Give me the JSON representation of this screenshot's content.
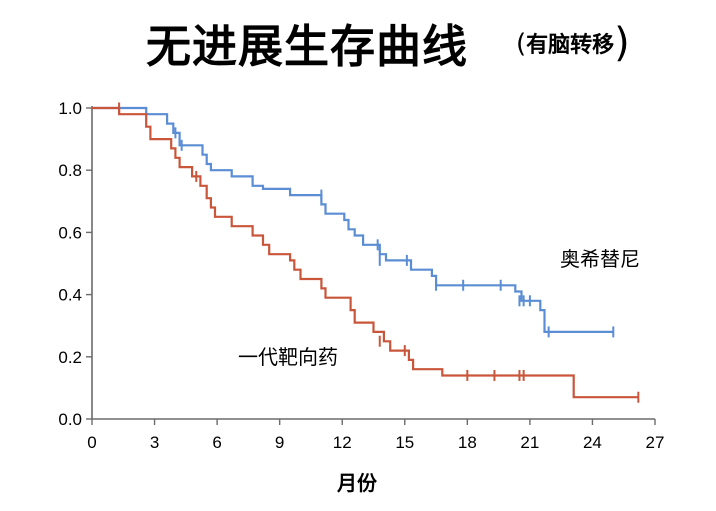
{
  "title": {
    "main": "无进展生存曲线",
    "sub": "有脑转移",
    "open_paren": "(",
    "close_paren": ")"
  },
  "colors": {
    "series_1": "#5b8dd4",
    "series_2": "#c9563a",
    "axis": "#6b6b6b"
  },
  "chart_data": {
    "type": "line",
    "title": "无进展生存曲线 (有脑转移)",
    "xlabel": "月份",
    "ylabel": "",
    "xlim": [
      0,
      27
    ],
    "ylim": [
      0,
      1.0
    ],
    "xticks": [
      0,
      3,
      6,
      9,
      12,
      15,
      18,
      21,
      24,
      27
    ],
    "yticks": [
      "0.0",
      "0.2",
      "0.4",
      "0.6",
      "0.8",
      "1.0"
    ],
    "ytick_values": [
      0,
      0.2,
      0.4,
      0.6,
      0.8,
      1.0
    ],
    "grid": false,
    "legend": "inline labels",
    "series": [
      {
        "name": "奥希替尼",
        "color": "#5b8dd4",
        "steps": [
          [
            0,
            1.0
          ],
          [
            2.6,
            1.0
          ],
          [
            2.6,
            0.98
          ],
          [
            3.6,
            0.98
          ],
          [
            3.6,
            0.95
          ],
          [
            3.9,
            0.95
          ],
          [
            3.9,
            0.92
          ],
          [
            4.2,
            0.92
          ],
          [
            4.2,
            0.88
          ],
          [
            5.3,
            0.88
          ],
          [
            5.3,
            0.85
          ],
          [
            5.5,
            0.85
          ],
          [
            5.5,
            0.82
          ],
          [
            5.7,
            0.82
          ],
          [
            5.7,
            0.8
          ],
          [
            6.7,
            0.8
          ],
          [
            6.7,
            0.78
          ],
          [
            7.7,
            0.78
          ],
          [
            7.7,
            0.75
          ],
          [
            8.2,
            0.75
          ],
          [
            8.2,
            0.74
          ],
          [
            9.5,
            0.74
          ],
          [
            9.5,
            0.72
          ],
          [
            11.0,
            0.72
          ],
          [
            11.0,
            0.69
          ],
          [
            11.2,
            0.69
          ],
          [
            11.2,
            0.66
          ],
          [
            12.1,
            0.66
          ],
          [
            12.1,
            0.64
          ],
          [
            12.3,
            0.64
          ],
          [
            12.3,
            0.61
          ],
          [
            12.6,
            0.61
          ],
          [
            12.6,
            0.59
          ],
          [
            13.0,
            0.59
          ],
          [
            13.0,
            0.56
          ],
          [
            13.8,
            0.56
          ],
          [
            13.8,
            0.53
          ],
          [
            14.1,
            0.53
          ],
          [
            14.1,
            0.51
          ],
          [
            15.3,
            0.51
          ],
          [
            15.3,
            0.48
          ],
          [
            16.3,
            0.48
          ],
          [
            16.3,
            0.46
          ],
          [
            16.5,
            0.46
          ],
          [
            16.5,
            0.43
          ],
          [
            20.3,
            0.43
          ],
          [
            20.3,
            0.41
          ],
          [
            20.6,
            0.41
          ],
          [
            20.6,
            0.38
          ],
          [
            21.5,
            0.38
          ],
          [
            21.5,
            0.35
          ],
          [
            21.7,
            0.35
          ],
          [
            21.7,
            0.28
          ],
          [
            25.0,
            0.28
          ]
        ],
        "censor": [
          [
            4.0,
            0.92
          ],
          [
            4.3,
            0.88
          ],
          [
            11.0,
            0.72
          ],
          [
            13.7,
            0.56
          ],
          [
            13.8,
            0.51
          ],
          [
            15.1,
            0.51
          ],
          [
            16.5,
            0.43
          ],
          [
            17.8,
            0.43
          ],
          [
            19.6,
            0.43
          ],
          [
            20.5,
            0.38
          ],
          [
            20.7,
            0.38
          ],
          [
            21.0,
            0.38
          ],
          [
            21.9,
            0.28
          ],
          [
            25.0,
            0.28
          ]
        ]
      },
      {
        "name": "一代靶向药",
        "color": "#c9563a",
        "steps": [
          [
            0,
            1.0
          ],
          [
            1.3,
            1.0
          ],
          [
            1.3,
            0.98
          ],
          [
            2.6,
            0.98
          ],
          [
            2.6,
            0.94
          ],
          [
            2.8,
            0.94
          ],
          [
            2.8,
            0.9
          ],
          [
            3.8,
            0.9
          ],
          [
            3.8,
            0.87
          ],
          [
            4.0,
            0.87
          ],
          [
            4.0,
            0.84
          ],
          [
            4.2,
            0.84
          ],
          [
            4.2,
            0.81
          ],
          [
            4.8,
            0.81
          ],
          [
            4.8,
            0.78
          ],
          [
            5.2,
            0.78
          ],
          [
            5.2,
            0.75
          ],
          [
            5.5,
            0.75
          ],
          [
            5.5,
            0.71
          ],
          [
            5.7,
            0.71
          ],
          [
            5.7,
            0.68
          ],
          [
            5.9,
            0.68
          ],
          [
            5.9,
            0.65
          ],
          [
            6.7,
            0.65
          ],
          [
            6.7,
            0.62
          ],
          [
            7.7,
            0.62
          ],
          [
            7.7,
            0.59
          ],
          [
            8.2,
            0.59
          ],
          [
            8.2,
            0.56
          ],
          [
            8.5,
            0.56
          ],
          [
            8.5,
            0.53
          ],
          [
            9.5,
            0.53
          ],
          [
            9.5,
            0.51
          ],
          [
            9.7,
            0.51
          ],
          [
            9.7,
            0.48
          ],
          [
            10.0,
            0.48
          ],
          [
            10.0,
            0.45
          ],
          [
            11.0,
            0.45
          ],
          [
            11.0,
            0.42
          ],
          [
            11.2,
            0.42
          ],
          [
            11.2,
            0.39
          ],
          [
            12.4,
            0.39
          ],
          [
            12.4,
            0.35
          ],
          [
            12.6,
            0.35
          ],
          [
            12.6,
            0.31
          ],
          [
            13.5,
            0.31
          ],
          [
            13.5,
            0.28
          ],
          [
            14.0,
            0.28
          ],
          [
            14.0,
            0.25
          ],
          [
            14.3,
            0.25
          ],
          [
            14.3,
            0.22
          ],
          [
            15.2,
            0.22
          ],
          [
            15.2,
            0.19
          ],
          [
            15.4,
            0.19
          ],
          [
            15.4,
            0.16
          ],
          [
            16.8,
            0.16
          ],
          [
            16.8,
            0.14
          ],
          [
            23.1,
            0.14
          ],
          [
            23.1,
            0.07
          ],
          [
            26.2,
            0.07
          ]
        ],
        "censor": [
          [
            1.3,
            1.0
          ],
          [
            5.0,
            0.78
          ],
          [
            13.8,
            0.25
          ],
          [
            15.0,
            0.22
          ],
          [
            18.0,
            0.14
          ],
          [
            19.3,
            0.14
          ],
          [
            20.5,
            0.14
          ],
          [
            20.7,
            0.14
          ],
          [
            26.2,
            0.07
          ]
        ]
      }
    ]
  },
  "labels": {
    "series_1": "奥希替尼",
    "series_2": "一代靶向药"
  }
}
